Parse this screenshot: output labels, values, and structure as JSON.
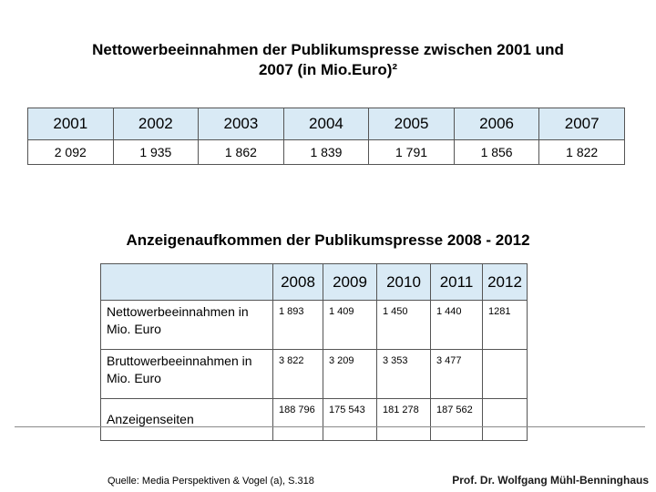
{
  "title1": {
    "line1": "Nettowerbeeinnahmen der Publikumspresse zwischen 2001 und",
    "line2": "2007 (in Mio.Euro)²"
  },
  "table1": {
    "years": [
      "2001",
      "2002",
      "2003",
      "2004",
      "2005",
      "2006",
      "2007"
    ],
    "values": [
      "2 092",
      "1 935",
      "1 862",
      "1 839",
      "1 791",
      "1 856",
      "1 822"
    ]
  },
  "title2": "Anzeigenaufkommen der Publikumspresse 2008 - 2012",
  "table2": {
    "years": [
      "2008",
      "2009",
      "2010",
      "2011",
      "2012"
    ],
    "rows": [
      {
        "label": "Nettowerbeeinnahmen in  Mio. Euro",
        "values": [
          "1 893",
          "1 409",
          "1 450",
          "1 440",
          "1281"
        ]
      },
      {
        "label": "Bruttowerbeeinnahmen in Mio. Euro",
        "values": [
          "3 822",
          "3 209",
          "3 353",
          "3 477",
          ""
        ]
      },
      {
        "label": "Anzeigenseiten",
        "values": [
          "188 796",
          "175 543",
          "181 278",
          "187 562",
          ""
        ]
      }
    ]
  },
  "footer": {
    "source": "Quelle: Media Perspektiven  & Vogel (a), S.318",
    "author": "Prof. Dr. Wolfgang Mühl-Benninghaus"
  },
  "colors": {
    "header_fill": "#d9eaf5"
  }
}
